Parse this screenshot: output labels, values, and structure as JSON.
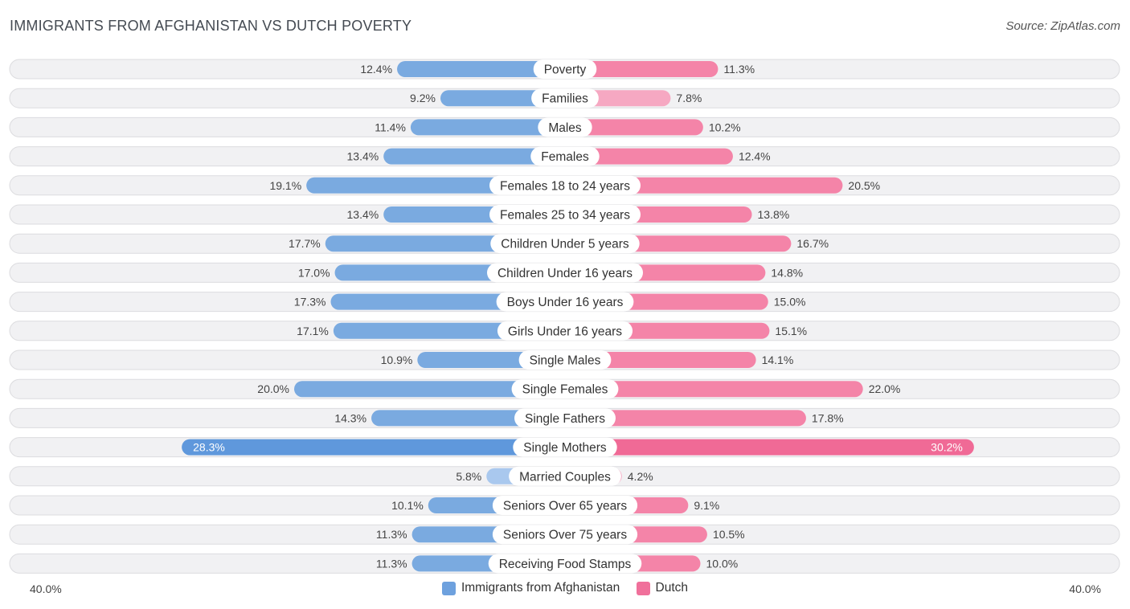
{
  "header": {
    "title": "IMMIGRANTS FROM AFGHANISTAN VS DUTCH POVERTY",
    "source": "Source: ZipAtlas.com"
  },
  "colors": {
    "left_bar": "#7aaae0",
    "left_bar_light": "#a9c8ee",
    "left_bar_strong": "#5f98dc",
    "right_bar": "#f484a8",
    "right_bar_light": "#f6a8c2",
    "right_bar_strong": "#f06a96",
    "legend_left": "#6ea1de",
    "legend_right": "#f0709b"
  },
  "axis": {
    "left_label": "40.0%",
    "right_label": "40.0%"
  },
  "legend": {
    "left": "Immigrants from Afghanistan",
    "right": "Dutch"
  },
  "chart_data": {
    "type": "bar",
    "orientation": "horizontal-diverging",
    "title": "IMMIGRANTS FROM AFGHANISTAN VS DUTCH POVERTY",
    "xlim": [
      -40,
      40
    ],
    "categories": [
      "Poverty",
      "Families",
      "Males",
      "Females",
      "Females 18 to 24 years",
      "Females 25 to 34 years",
      "Children Under 5 years",
      "Children Under 16 years",
      "Boys Under 16 years",
      "Girls Under 16 years",
      "Single Males",
      "Single Females",
      "Single Fathers",
      "Single Mothers",
      "Married Couples",
      "Seniors Over 65 years",
      "Seniors Over 75 years",
      "Receiving Food Stamps"
    ],
    "series": [
      {
        "name": "Immigrants from Afghanistan",
        "values": [
          12.4,
          9.2,
          11.4,
          13.4,
          19.1,
          13.4,
          17.7,
          17.0,
          17.3,
          17.1,
          10.9,
          20.0,
          14.3,
          28.3,
          5.8,
          10.1,
          11.3,
          11.3
        ],
        "labels": [
          "12.4%",
          "9.2%",
          "11.4%",
          "13.4%",
          "19.1%",
          "13.4%",
          "17.7%",
          "17.0%",
          "17.3%",
          "17.1%",
          "10.9%",
          "20.0%",
          "14.3%",
          "28.3%",
          "5.8%",
          "10.1%",
          "11.3%",
          "11.3%"
        ]
      },
      {
        "name": "Dutch",
        "values": [
          11.3,
          7.8,
          10.2,
          12.4,
          20.5,
          13.8,
          16.7,
          14.8,
          15.0,
          15.1,
          14.1,
          22.0,
          17.8,
          30.2,
          4.2,
          9.1,
          10.5,
          10.0
        ],
        "labels": [
          "11.3%",
          "7.8%",
          "10.2%",
          "12.4%",
          "20.5%",
          "13.8%",
          "16.7%",
          "14.8%",
          "15.0%",
          "15.1%",
          "14.1%",
          "22.0%",
          "17.8%",
          "30.2%",
          "4.2%",
          "9.1%",
          "10.5%",
          "10.0%"
        ]
      }
    ]
  }
}
